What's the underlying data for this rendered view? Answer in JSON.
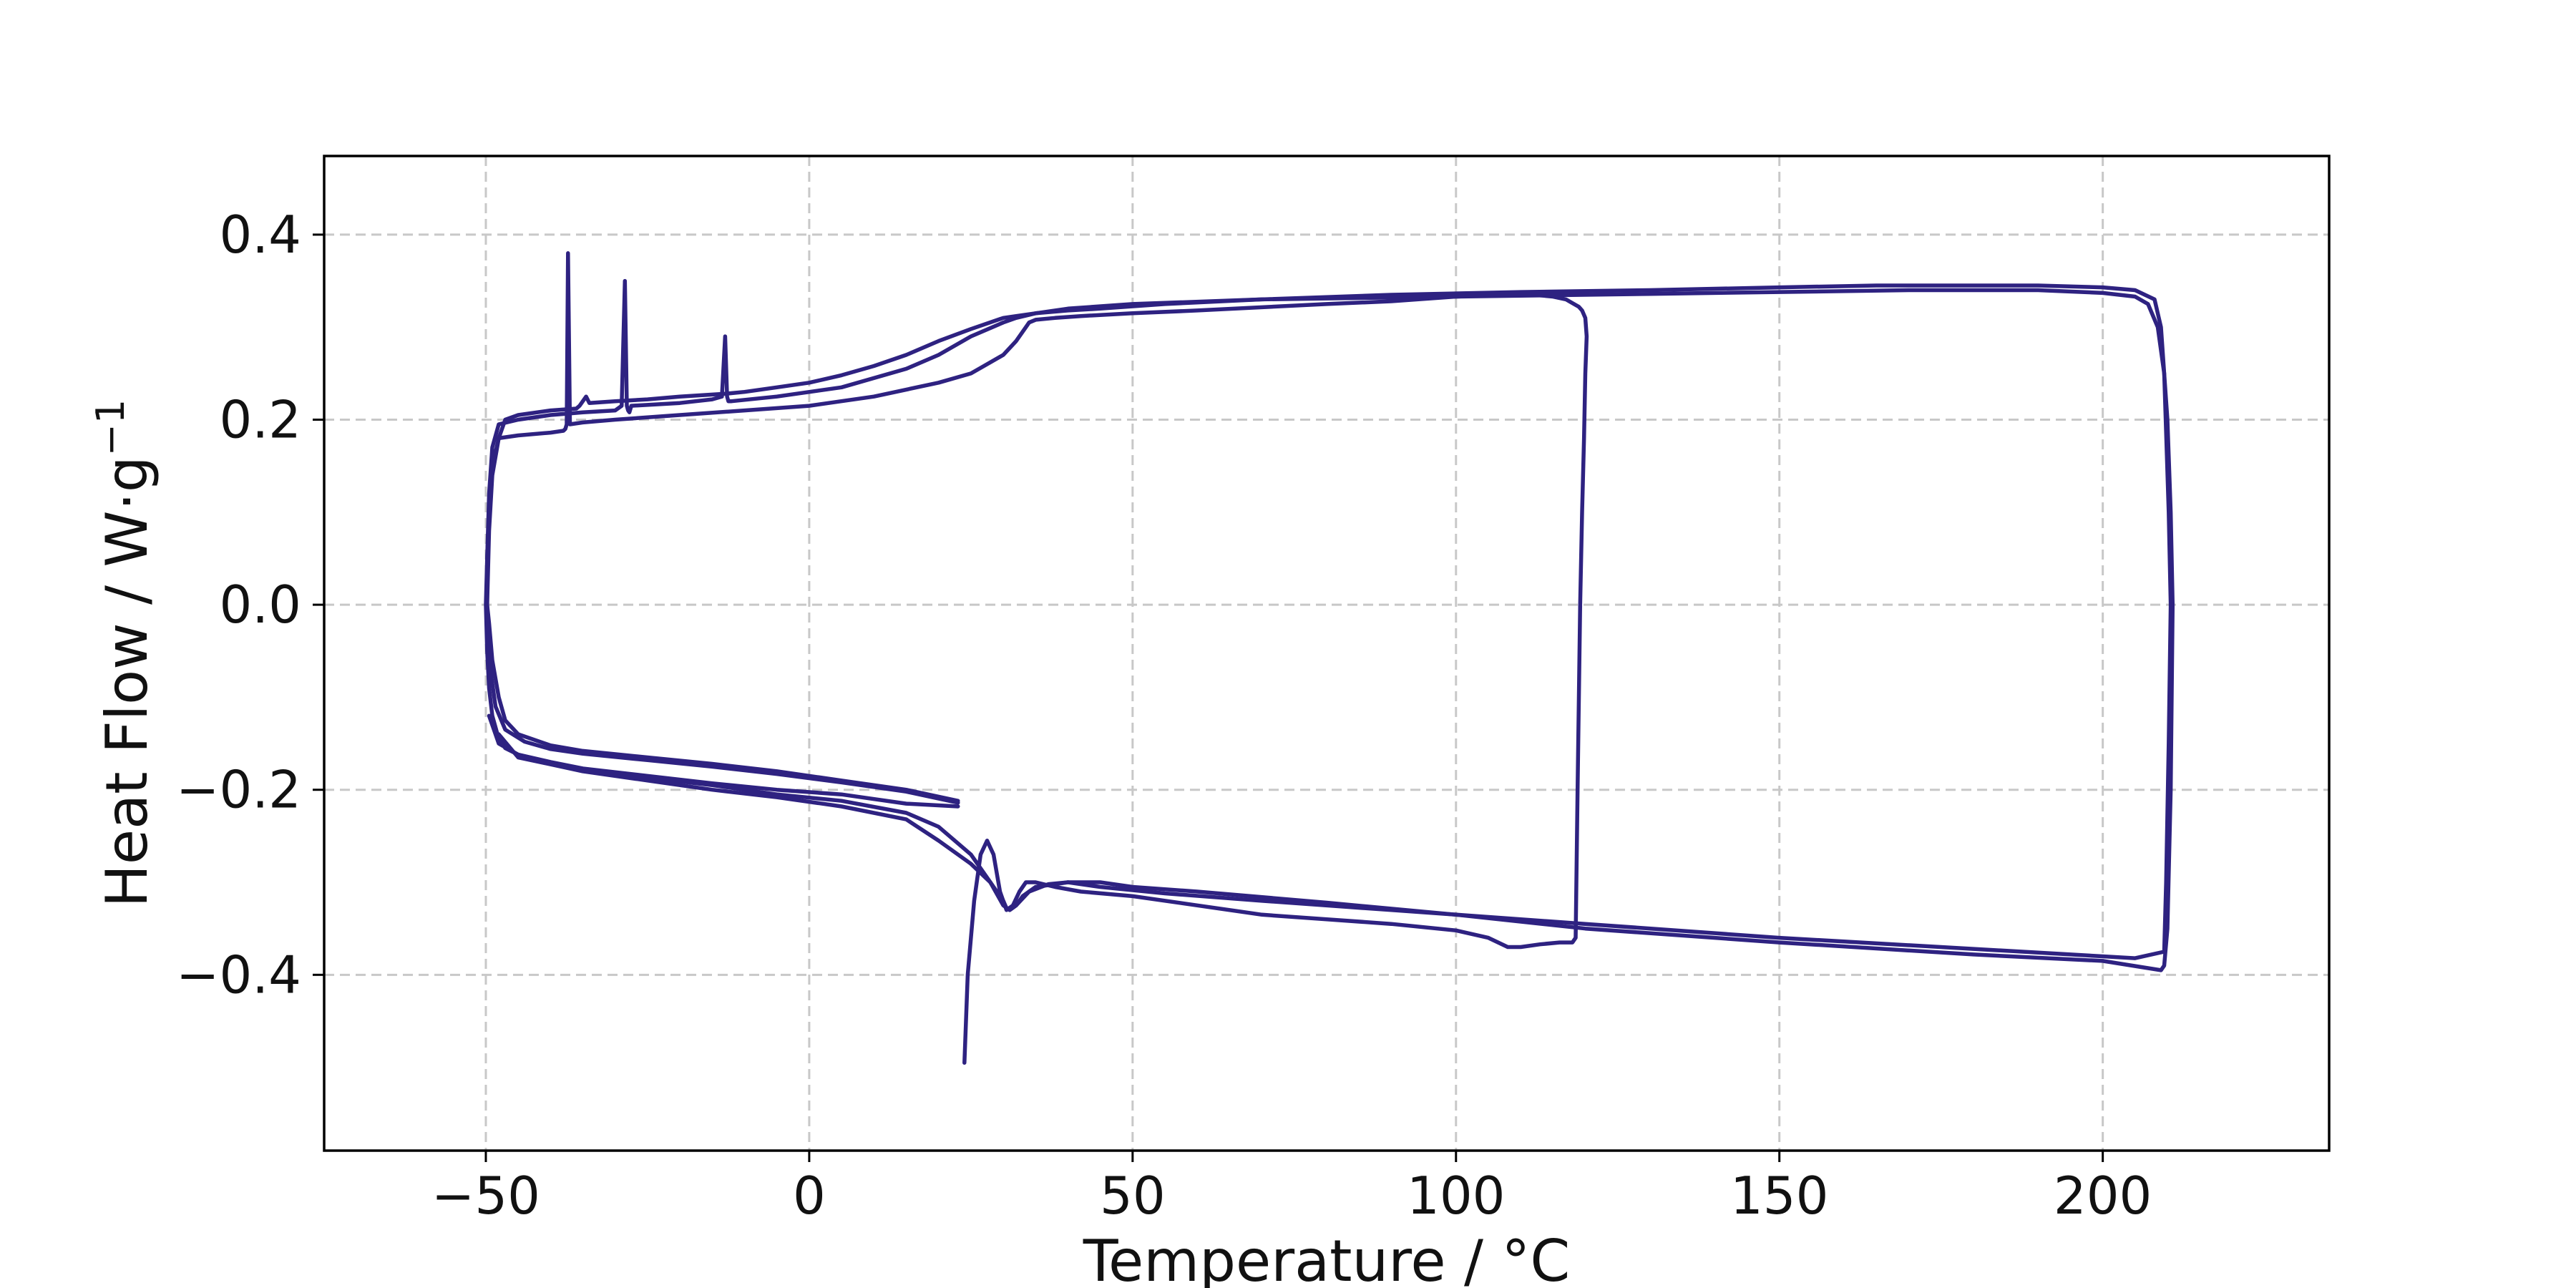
{
  "chart_data": {
    "type": "line",
    "title": "",
    "xlabel": "Temperature / °C",
    "ylabel": "Heat Flow / W·g",
    "ylabel_superscript": "−1",
    "xlim": [
      -75,
      235
    ],
    "ylim": [
      -0.59,
      0.485
    ],
    "xticks": [
      -50,
      0,
      50,
      100,
      150,
      200
    ],
    "xtick_labels": [
      "−50",
      "0",
      "50",
      "100",
      "150",
      "200"
    ],
    "yticks": [
      0.4,
      0.2,
      0.0,
      -0.2,
      -0.4
    ],
    "ytick_labels": [
      "0.4",
      "0.2",
      "0.0",
      "−0.2",
      "−0.4"
    ],
    "grid": true,
    "line_color": "#2e2281",
    "series": [
      {
        "x": [
          24,
          24.5,
          25.5,
          26.5,
          27.5,
          28.5,
          29.5,
          30.5,
          31.5,
          32.5,
          33.5,
          35,
          38,
          42,
          50,
          60,
          70,
          80,
          90,
          100,
          105,
          108,
          110,
          113,
          116,
          118,
          118.5,
          118.8,
          119.2,
          119.5,
          119.8,
          120,
          120.2,
          120,
          119.5,
          119,
          118,
          117,
          115,
          112,
          108,
          100,
          90,
          80,
          60,
          50,
          42,
          38,
          35,
          34,
          33.5,
          32,
          30,
          25,
          20,
          10,
          0,
          -10,
          -20,
          -30,
          -35,
          -37,
          -37.3,
          -37.5,
          -37.7,
          -38,
          -40,
          -45,
          -48,
          -49,
          -49.5,
          -49.8,
          -50,
          -49.8,
          -49.5,
          -49,
          -48,
          -47,
          -45,
          -40,
          -35,
          -25,
          -15,
          -5,
          5,
          15,
          23
        ],
        "y": [
          -0.495,
          -0.4,
          -0.32,
          -0.27,
          -0.255,
          -0.27,
          -0.31,
          -0.33,
          -0.325,
          -0.31,
          -0.3,
          -0.3,
          -0.305,
          -0.31,
          -0.315,
          -0.325,
          -0.335,
          -0.34,
          -0.345,
          -0.352,
          -0.36,
          -0.37,
          -0.37,
          -0.367,
          -0.365,
          -0.365,
          -0.36,
          -0.2,
          0.0,
          0.1,
          0.18,
          0.25,
          0.29,
          0.31,
          0.318,
          0.322,
          0.326,
          0.33,
          0.333,
          0.335,
          0.335,
          0.333,
          0.328,
          0.325,
          0.318,
          0.315,
          0.312,
          0.31,
          0.308,
          0.305,
          0.3,
          0.285,
          0.27,
          0.25,
          0.24,
          0.225,
          0.215,
          0.21,
          0.205,
          0.2,
          0.197,
          0.195,
          0.38,
          0.195,
          0.19,
          0.188,
          0.186,
          0.183,
          0.18,
          0.15,
          0.1,
          0.05,
          0.0,
          -0.05,
          -0.09,
          -0.12,
          -0.145,
          -0.155,
          -0.162,
          -0.17,
          -0.177,
          -0.185,
          -0.193,
          -0.2,
          -0.205,
          -0.215,
          -0.218
        ]
      },
      {
        "x": [
          23,
          15,
          5,
          -5,
          -15,
          -25,
          -35,
          -40,
          -45,
          -47,
          -48,
          -49,
          -49.5,
          -49.8,
          -49.8,
          -49.5,
          -49,
          -48,
          -45,
          -40,
          -35,
          -30,
          -29,
          -28.5,
          -28.2,
          -28,
          -27.8,
          -27.5,
          -20,
          -15,
          -13.5,
          -13,
          -12.7,
          -12.5,
          -12,
          -5,
          5,
          15,
          20,
          25,
          30,
          32,
          35,
          40,
          45,
          55,
          70,
          90,
          110,
          130,
          150,
          165,
          180,
          190,
          200,
          205,
          208,
          209,
          210,
          210.5,
          210.8,
          210.5,
          210,
          209.5,
          209,
          200,
          180,
          150,
          120,
          100,
          80,
          60,
          50,
          45,
          40,
          37,
          34,
          32,
          31,
          30,
          28,
          25,
          20,
          15,
          5,
          -5,
          -15,
          -25,
          -35,
          -40,
          -45,
          -48,
          -49.5
        ],
        "y": [
          -0.212,
          -0.2,
          -0.19,
          -0.18,
          -0.172,
          -0.165,
          -0.158,
          -0.152,
          -0.14,
          -0.125,
          -0.1,
          -0.06,
          -0.02,
          0.0,
          0.05,
          0.12,
          0.17,
          0.195,
          0.2,
          0.205,
          0.208,
          0.21,
          0.215,
          0.35,
          0.215,
          0.21,
          0.208,
          0.215,
          0.218,
          0.222,
          0.225,
          0.29,
          0.225,
          0.22,
          0.22,
          0.225,
          0.235,
          0.255,
          0.27,
          0.29,
          0.305,
          0.31,
          0.315,
          0.318,
          0.32,
          0.325,
          0.33,
          0.335,
          0.338,
          0.34,
          0.343,
          0.345,
          0.345,
          0.345,
          0.343,
          0.34,
          0.33,
          0.3,
          0.2,
          0.1,
          0.0,
          -0.2,
          -0.35,
          -0.39,
          -0.395,
          -0.385,
          -0.378,
          -0.365,
          -0.35,
          -0.335,
          -0.322,
          -0.31,
          -0.305,
          -0.3,
          -0.3,
          -0.302,
          -0.31,
          -0.325,
          -0.33,
          -0.325,
          -0.3,
          -0.27,
          -0.24,
          -0.225,
          -0.212,
          -0.205,
          -0.195,
          -0.187,
          -0.178,
          -0.172,
          -0.162,
          -0.15,
          -0.12
        ]
      },
      {
        "x": [
          23,
          15,
          5,
          -5,
          -15,
          -25,
          -35,
          -40,
          -44,
          -47,
          -48.5,
          -49.5,
          -49.8,
          -49.5,
          -49,
          -48,
          -47,
          -45,
          -40,
          -36,
          -35.5,
          -35,
          -34.5,
          -34,
          -30,
          -25,
          -20,
          -13,
          -10,
          -5,
          0,
          5,
          10,
          15,
          20,
          25,
          30,
          32,
          35,
          40,
          50,
          70,
          100,
          130,
          150,
          170,
          180,
          190,
          200,
          205,
          207,
          208.5,
          209.5,
          210.2,
          210.5,
          210.2,
          209.8,
          209.5,
          205,
          200,
          180,
          150,
          120,
          90,
          70,
          55,
          45,
          40,
          35,
          33,
          32,
          31,
          30.5,
          30,
          28,
          25,
          20,
          15,
          5,
          -5,
          -15,
          -25,
          -35,
          -45,
          -48
        ],
        "y": [
          -0.214,
          -0.202,
          -0.192,
          -0.183,
          -0.175,
          -0.168,
          -0.161,
          -0.156,
          -0.148,
          -0.135,
          -0.11,
          -0.06,
          0.0,
          0.08,
          0.14,
          0.18,
          0.2,
          0.205,
          0.21,
          0.212,
          0.215,
          0.22,
          0.225,
          0.218,
          0.22,
          0.222,
          0.225,
          0.228,
          0.23,
          0.235,
          0.24,
          0.248,
          0.258,
          0.27,
          0.285,
          0.298,
          0.31,
          0.312,
          0.315,
          0.32,
          0.325,
          0.33,
          0.333,
          0.336,
          0.338,
          0.34,
          0.34,
          0.34,
          0.337,
          0.333,
          0.325,
          0.3,
          0.25,
          0.1,
          0.0,
          -0.15,
          -0.3,
          -0.375,
          -0.382,
          -0.38,
          -0.372,
          -0.36,
          -0.345,
          -0.33,
          -0.32,
          -0.312,
          -0.305,
          -0.3,
          -0.305,
          -0.315,
          -0.325,
          -0.33,
          -0.328,
          -0.32,
          -0.3,
          -0.28,
          -0.255,
          -0.232,
          -0.218,
          -0.208,
          -0.2,
          -0.19,
          -0.18,
          -0.165,
          -0.14
        ]
      }
    ]
  }
}
